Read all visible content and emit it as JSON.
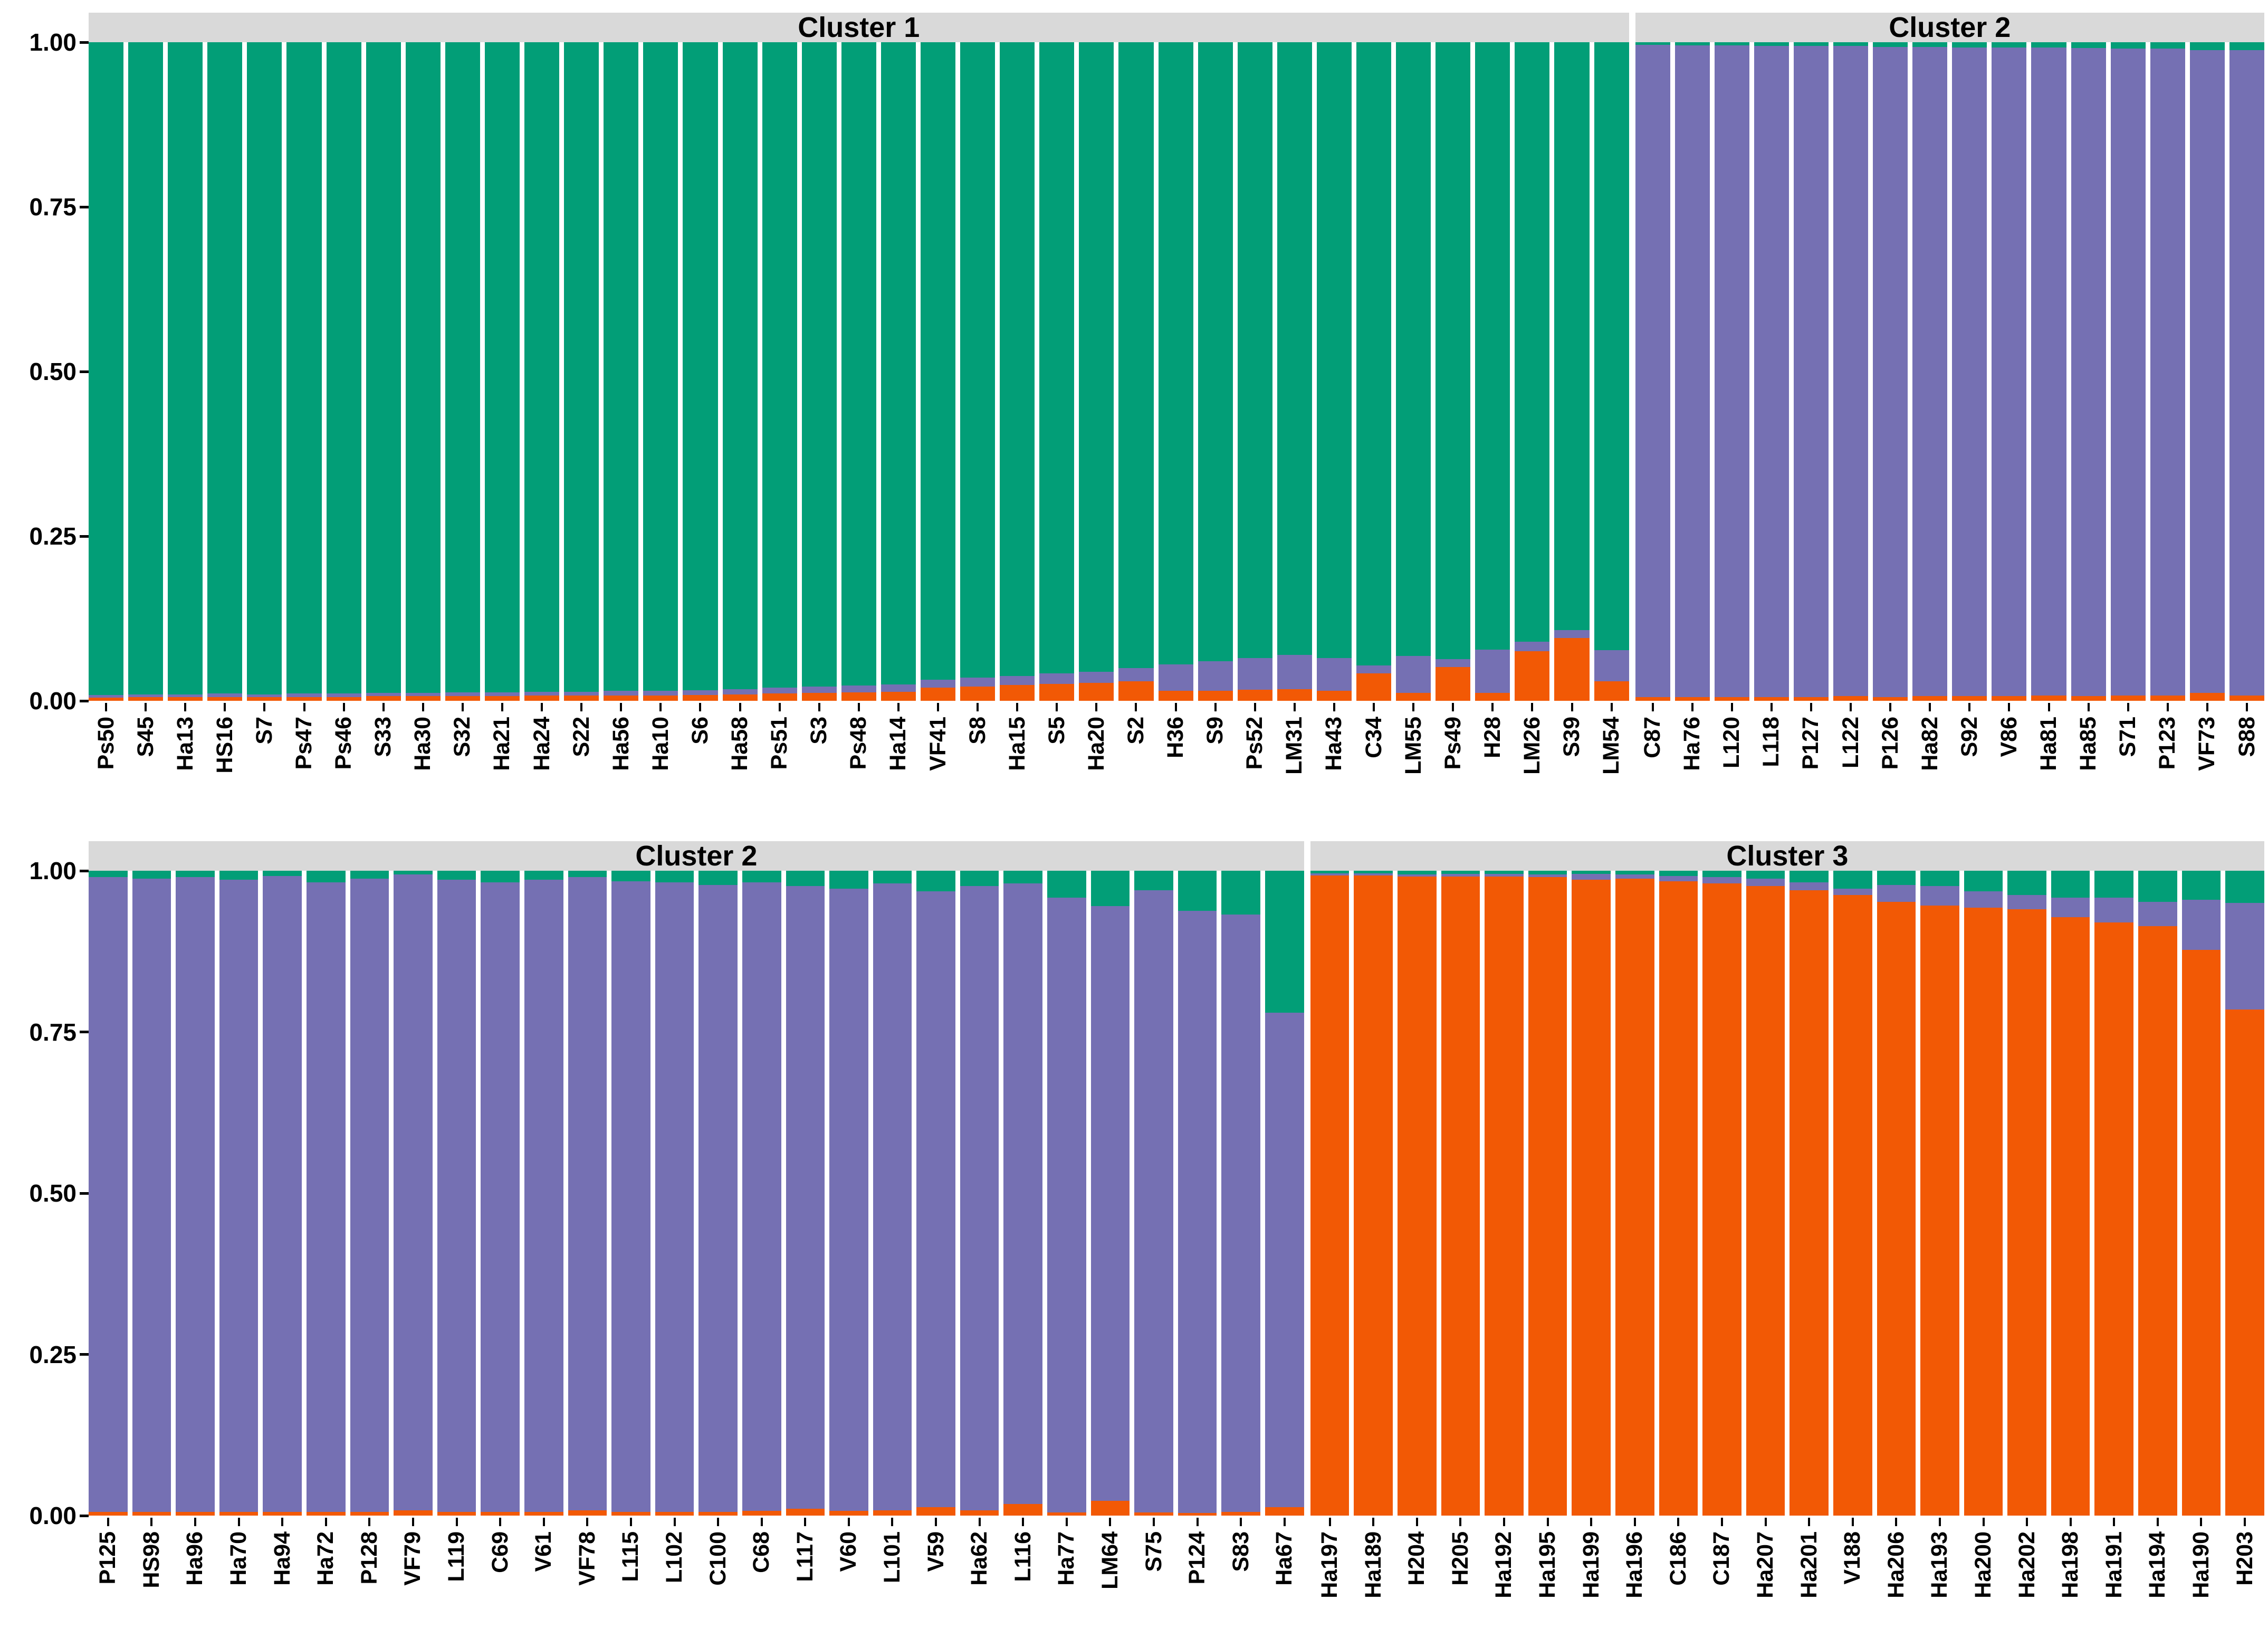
{
  "chart_data": {
    "type": "bar",
    "subtype": "stacked-admixture-structure-plot",
    "title": "",
    "xlabel": "",
    "ylabel": "",
    "ylim": [
      0,
      1
    ],
    "grid": false,
    "legend": "none",
    "strip_background": "#D9D9D9",
    "text_color": "#000000",
    "stack_order": [
      "green",
      "purple",
      "orange"
    ],
    "colors": {
      "green": "#029E77",
      "purple": "#7570B3",
      "orange": "#F25905"
    },
    "y_ticks": [
      {
        "label": "1.00",
        "value": 1.0
      },
      {
        "label": "0.75",
        "value": 0.75
      },
      {
        "label": "0.50",
        "value": 0.5
      },
      {
        "label": "0.25",
        "value": 0.25
      },
      {
        "label": "0.00",
        "value": 0.0
      }
    ],
    "bar_value_format": "[label, green_fraction, purple_fraction, orange_fraction]",
    "rows": [
      {
        "panels": [
          {
            "title": "Cluster 1",
            "bars": [
              [
                "Ps50",
                0.991,
                0.004,
                0.005
              ],
              [
                "S45",
                0.99,
                0.004,
                0.006
              ],
              [
                "Ha13",
                0.99,
                0.004,
                0.006
              ],
              [
                "HS16",
                0.989,
                0.005,
                0.006
              ],
              [
                "S7",
                0.99,
                0.004,
                0.006
              ],
              [
                "Ps47",
                0.989,
                0.005,
                0.006
              ],
              [
                "Ps46",
                0.989,
                0.005,
                0.006
              ],
              [
                "S33",
                0.988,
                0.005,
                0.007
              ],
              [
                "Ha30",
                0.988,
                0.005,
                0.007
              ],
              [
                "S32",
                0.987,
                0.006,
                0.007
              ],
              [
                "Ha21",
                0.987,
                0.006,
                0.007
              ],
              [
                "Ha24",
                0.986,
                0.006,
                0.008
              ],
              [
                "S22",
                0.986,
                0.006,
                0.008
              ],
              [
                "Ha56",
                0.985,
                0.007,
                0.008
              ],
              [
                "Ha10",
                0.985,
                0.007,
                0.008
              ],
              [
                "S6",
                0.984,
                0.007,
                0.009
              ],
              [
                "Ha58",
                0.982,
                0.008,
                0.01
              ],
              [
                "Ps51",
                0.98,
                0.009,
                0.011
              ],
              [
                "S3",
                0.978,
                0.01,
                0.012
              ],
              [
                "Ps48",
                0.977,
                0.01,
                0.013
              ],
              [
                "Ha14",
                0.975,
                0.011,
                0.014
              ],
              [
                "VF41",
                0.968,
                0.012,
                0.02
              ],
              [
                "S8",
                0.965,
                0.013,
                0.022
              ],
              [
                "Ha15",
                0.962,
                0.014,
                0.024
              ],
              [
                "S5",
                0.958,
                0.016,
                0.026
              ],
              [
                "Ha20",
                0.956,
                0.017,
                0.027
              ],
              [
                "S2",
                0.95,
                0.02,
                0.03
              ],
              [
                "H36",
                0.945,
                0.04,
                0.015
              ],
              [
                "S9",
                0.94,
                0.045,
                0.015
              ],
              [
                "Ps52",
                0.935,
                0.048,
                0.017
              ],
              [
                "LM31",
                0.93,
                0.052,
                0.018
              ],
              [
                "Ha43",
                0.935,
                0.05,
                0.015
              ],
              [
                "C34",
                0.946,
                0.012,
                0.042
              ],
              [
                "LM55",
                0.932,
                0.056,
                0.012
              ],
              [
                "Ps49",
                0.937,
                0.012,
                0.051
              ],
              [
                "H28",
                0.922,
                0.066,
                0.012
              ],
              [
                "LM26",
                0.91,
                0.015,
                0.075
              ],
              [
                "S39",
                0.893,
                0.012,
                0.095
              ],
              [
                "LM54",
                0.923,
                0.047,
                0.03
              ]
            ]
          },
          {
            "title": "Cluster 2",
            "bars": [
              [
                "C87",
                0.004,
                0.99,
                0.006
              ],
              [
                "Ha76",
                0.005,
                0.989,
                0.006
              ],
              [
                "L120",
                0.005,
                0.989,
                0.006
              ],
              [
                "L118",
                0.006,
                0.988,
                0.006
              ],
              [
                "P127",
                0.006,
                0.988,
                0.006
              ],
              [
                "L122",
                0.006,
                0.987,
                0.007
              ],
              [
                "P126",
                0.007,
                0.987,
                0.006
              ],
              [
                "Ha82",
                0.007,
                0.986,
                0.007
              ],
              [
                "S92",
                0.008,
                0.985,
                0.007
              ],
              [
                "V86",
                0.008,
                0.985,
                0.007
              ],
              [
                "Ha81",
                0.008,
                0.984,
                0.008
              ],
              [
                "Ha85",
                0.009,
                0.984,
                0.007
              ],
              [
                "S71",
                0.01,
                0.982,
                0.008
              ],
              [
                "P123",
                0.01,
                0.982,
                0.008
              ],
              [
                "VF73",
                0.012,
                0.976,
                0.012
              ],
              [
                "S88",
                0.012,
                0.98,
                0.008
              ]
            ]
          }
        ]
      },
      {
        "panels": [
          {
            "title": "Cluster 2",
            "bars": [
              [
                "P125",
                0.01,
                0.984,
                0.006
              ],
              [
                "HS98",
                0.012,
                0.982,
                0.006
              ],
              [
                "Ha96",
                0.01,
                0.984,
                0.006
              ],
              [
                "Ha70",
                0.014,
                0.98,
                0.006
              ],
              [
                "Ha94",
                0.008,
                0.986,
                0.006
              ],
              [
                "Ha72",
                0.018,
                0.976,
                0.006
              ],
              [
                "P128",
                0.012,
                0.982,
                0.006
              ],
              [
                "VF79",
                0.006,
                0.986,
                0.008
              ],
              [
                "L119",
                0.014,
                0.98,
                0.006
              ],
              [
                "C69",
                0.018,
                0.976,
                0.006
              ],
              [
                "V61",
                0.014,
                0.98,
                0.006
              ],
              [
                "VF78",
                0.01,
                0.982,
                0.008
              ],
              [
                "L115",
                0.016,
                0.978,
                0.006
              ],
              [
                "L102",
                0.018,
                0.976,
                0.006
              ],
              [
                "C100",
                0.022,
                0.972,
                0.006
              ],
              [
                "C68",
                0.018,
                0.975,
                0.007
              ],
              [
                "L117",
                0.024,
                0.965,
                0.011
              ],
              [
                "V60",
                0.028,
                0.965,
                0.007
              ],
              [
                "L101",
                0.02,
                0.972,
                0.008
              ],
              [
                "V59",
                0.032,
                0.955,
                0.013
              ],
              [
                "Ha62",
                0.024,
                0.968,
                0.008
              ],
              [
                "L116",
                0.02,
                0.962,
                0.018
              ],
              [
                "Ha77",
                0.042,
                0.953,
                0.005
              ],
              [
                "LM64",
                0.055,
                0.922,
                0.023
              ],
              [
                "S75",
                0.03,
                0.965,
                0.005
              ],
              [
                "P124",
                0.062,
                0.934,
                0.004
              ],
              [
                "S83",
                0.068,
                0.926,
                0.006
              ],
              [
                "Ha67",
                0.22,
                0.767,
                0.013
              ]
            ]
          },
          {
            "title": "Cluster 3",
            "bars": [
              [
                "Ha197",
                0.004,
                0.003,
                0.993
              ],
              [
                "Ha189",
                0.004,
                0.003,
                0.993
              ],
              [
                "H204",
                0.006,
                0.003,
                0.991
              ],
              [
                "H205",
                0.005,
                0.004,
                0.991
              ],
              [
                "Ha192",
                0.005,
                0.004,
                0.991
              ],
              [
                "Ha195",
                0.006,
                0.004,
                0.99
              ],
              [
                "Ha199",
                0.005,
                0.009,
                0.986
              ],
              [
                "Ha196",
                0.006,
                0.006,
                0.988
              ],
              [
                "C186",
                0.008,
                0.008,
                0.984
              ],
              [
                "C187",
                0.01,
                0.01,
                0.98
              ],
              [
                "Ha207",
                0.012,
                0.012,
                0.976
              ],
              [
                "Ha201",
                0.018,
                0.012,
                0.97
              ],
              [
                "V188",
                0.028,
                0.01,
                0.962
              ],
              [
                "Ha206",
                0.022,
                0.026,
                0.952
              ],
              [
                "Ha193",
                0.024,
                0.03,
                0.946
              ],
              [
                "Ha200",
                0.032,
                0.025,
                0.943
              ],
              [
                "Ha202",
                0.038,
                0.022,
                0.94
              ],
              [
                "Ha198",
                0.042,
                0.03,
                0.928
              ],
              [
                "Ha191",
                0.042,
                0.038,
                0.92
              ],
              [
                "Ha194",
                0.048,
                0.038,
                0.914
              ],
              [
                "Ha190",
                0.045,
                0.078,
                0.877
              ],
              [
                "H203",
                0.05,
                0.165,
                0.785
              ]
            ]
          }
        ]
      }
    ]
  }
}
